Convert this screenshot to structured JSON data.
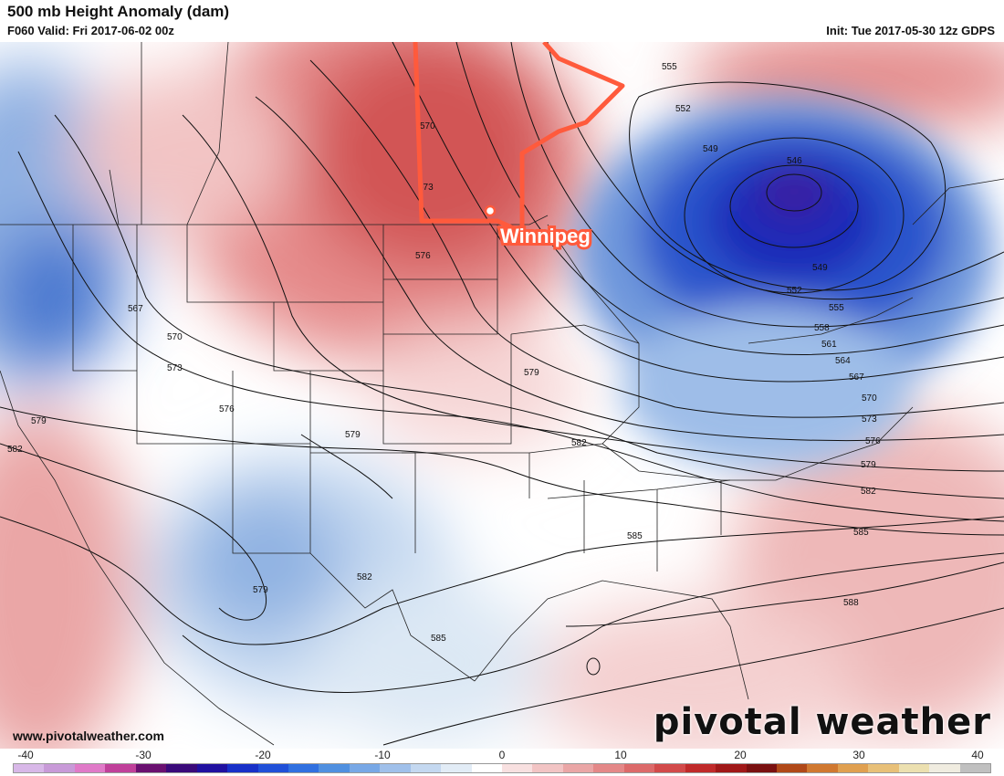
{
  "header": {
    "title": "500 mb Height Anomaly (dam)",
    "valid": "F060 Valid: Fri 2017-06-02 00z",
    "init": "Init: Tue 2017-05-30 12z GDPS"
  },
  "map": {
    "highlight_color": "#ff5a3c",
    "city": "Winnipeg",
    "contour_labels": [
      "546",
      "549",
      "552",
      "555",
      "558",
      "561",
      "564",
      "567",
      "570",
      "573",
      "576",
      "579",
      "582",
      "585",
      "588"
    ],
    "low_center_label": "546"
  },
  "colorbar": {
    "ticks": [
      "-40",
      "-30",
      "-20",
      "-10",
      "0",
      "10",
      "20",
      "30",
      "40"
    ],
    "colors": [
      "#d8b8e8",
      "#c89ad8",
      "#e07ac8",
      "#c0409a",
      "#6a1070",
      "#3a0a7a",
      "#2010a0",
      "#1830c8",
      "#2050d8",
      "#3070e0",
      "#5090e0",
      "#78a8e6",
      "#a0c0ea",
      "#c4d8f0",
      "#e2ecf6",
      "#ffffff",
      "#f8e0e0",
      "#f2c4c4",
      "#eaa6a6",
      "#e48888",
      "#dc6a6a",
      "#d24a4a",
      "#c02a2a",
      "#a01818",
      "#7a1010",
      "#b04818",
      "#d07830",
      "#e0a050",
      "#e8c078",
      "#ece0b0",
      "#f0ece0",
      "#c0c0c0"
    ]
  },
  "footer": {
    "website": "www.pivotalweather.com",
    "brand": "pivotal weather"
  }
}
